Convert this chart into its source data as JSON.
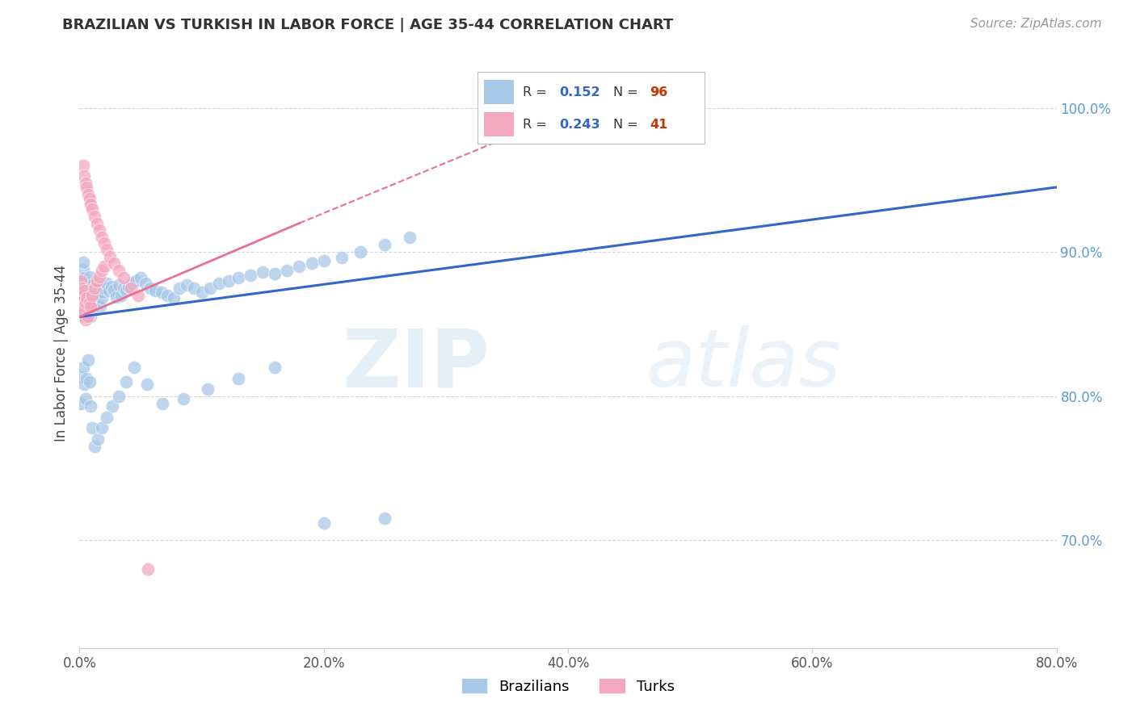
{
  "title": "BRAZILIAN VS TURKISH IN LABOR FORCE | AGE 35-44 CORRELATION CHART",
  "source": "Source: ZipAtlas.com",
  "ylabel": "In Labor Force | Age 35-44",
  "xlim": [
    0.0,
    0.8
  ],
  "ylim": [
    0.625,
    1.035
  ],
  "yticks": [
    0.7,
    0.8,
    0.9,
    1.0
  ],
  "yticklabels": [
    "70.0%",
    "80.0%",
    "90.0%",
    "100.0%"
  ],
  "xticks": [
    0.0,
    0.2,
    0.4,
    0.6,
    0.8
  ],
  "xticklabels": [
    "0.0%",
    "20.0%",
    "40.0%",
    "60.0%",
    "80.0%"
  ],
  "brazil_R": 0.152,
  "brazil_N": 96,
  "turk_R": 0.243,
  "turk_N": 41,
  "brazil_color": "#a8c8e8",
  "turk_color": "#f4a8c0",
  "brazil_line_color": "#3366cc",
  "turk_line_color": "#e87090",
  "watermark_zip": "ZIP",
  "watermark_atlas": "atlas",
  "legend_braz_label": "Brazilians",
  "legend_turk_label": "Turks",
  "brazil_x": [
    0.001,
    0.001,
    0.002,
    0.002,
    0.003,
    0.003,
    0.003,
    0.004,
    0.004,
    0.005,
    0.005,
    0.005,
    0.006,
    0.006,
    0.007,
    0.007,
    0.008,
    0.008,
    0.009,
    0.009,
    0.01,
    0.01,
    0.011,
    0.012,
    0.013,
    0.014,
    0.015,
    0.016,
    0.017,
    0.018,
    0.019,
    0.02,
    0.022,
    0.024,
    0.026,
    0.028,
    0.03,
    0.032,
    0.034,
    0.036,
    0.038,
    0.04,
    0.043,
    0.046,
    0.05,
    0.054,
    0.058,
    0.062,
    0.067,
    0.072,
    0.077,
    0.082,
    0.088,
    0.094,
    0.1,
    0.107,
    0.114,
    0.122,
    0.13,
    0.14,
    0.15,
    0.16,
    0.17,
    0.18,
    0.19,
    0.2,
    0.215,
    0.23,
    0.25,
    0.27,
    0.001,
    0.002,
    0.003,
    0.004,
    0.005,
    0.006,
    0.007,
    0.008,
    0.009,
    0.01,
    0.012,
    0.015,
    0.018,
    0.022,
    0.027,
    0.032,
    0.038,
    0.045,
    0.055,
    0.068,
    0.085,
    0.105,
    0.13,
    0.16,
    0.2,
    0.25
  ],
  "brazil_y": [
    0.856,
    0.871,
    0.864,
    0.879,
    0.888,
    0.893,
    0.86,
    0.875,
    0.882,
    0.869,
    0.855,
    0.876,
    0.863,
    0.858,
    0.874,
    0.86,
    0.883,
    0.87,
    0.868,
    0.855,
    0.877,
    0.861,
    0.873,
    0.871,
    0.865,
    0.87,
    0.867,
    0.875,
    0.862,
    0.868,
    0.872,
    0.875,
    0.878,
    0.873,
    0.876,
    0.874,
    0.869,
    0.877,
    0.87,
    0.875,
    0.873,
    0.876,
    0.878,
    0.88,
    0.882,
    0.878,
    0.875,
    0.873,
    0.872,
    0.87,
    0.868,
    0.875,
    0.877,
    0.875,
    0.872,
    0.875,
    0.878,
    0.88,
    0.882,
    0.884,
    0.886,
    0.885,
    0.887,
    0.89,
    0.892,
    0.894,
    0.896,
    0.9,
    0.905,
    0.91,
    0.795,
    0.813,
    0.82,
    0.808,
    0.798,
    0.812,
    0.825,
    0.81,
    0.793,
    0.778,
    0.765,
    0.77,
    0.778,
    0.785,
    0.793,
    0.8,
    0.81,
    0.82,
    0.808,
    0.795,
    0.798,
    0.805,
    0.812,
    0.82,
    0.712,
    0.715
  ],
  "turk_x": [
    0.001,
    0.001,
    0.002,
    0.002,
    0.003,
    0.003,
    0.004,
    0.004,
    0.005,
    0.005,
    0.006,
    0.007,
    0.008,
    0.009,
    0.01,
    0.012,
    0.014,
    0.016,
    0.018,
    0.02,
    0.003,
    0.004,
    0.005,
    0.006,
    0.007,
    0.008,
    0.009,
    0.01,
    0.012,
    0.014,
    0.016,
    0.018,
    0.02,
    0.022,
    0.025,
    0.028,
    0.032,
    0.036,
    0.042,
    0.048,
    0.056
  ],
  "turk_y": [
    0.87,
    0.88,
    0.863,
    0.875,
    0.858,
    0.87,
    0.86,
    0.873,
    0.853,
    0.865,
    0.868,
    0.855,
    0.865,
    0.862,
    0.87,
    0.875,
    0.88,
    0.883,
    0.887,
    0.89,
    0.96,
    0.953,
    0.948,
    0.945,
    0.94,
    0.937,
    0.933,
    0.93,
    0.925,
    0.92,
    0.915,
    0.91,
    0.906,
    0.902,
    0.897,
    0.892,
    0.887,
    0.882,
    0.875,
    0.87,
    0.68
  ],
  "title_fontsize": 13,
  "source_fontsize": 11,
  "axis_label_fontsize": 12,
  "tick_fontsize": 12
}
